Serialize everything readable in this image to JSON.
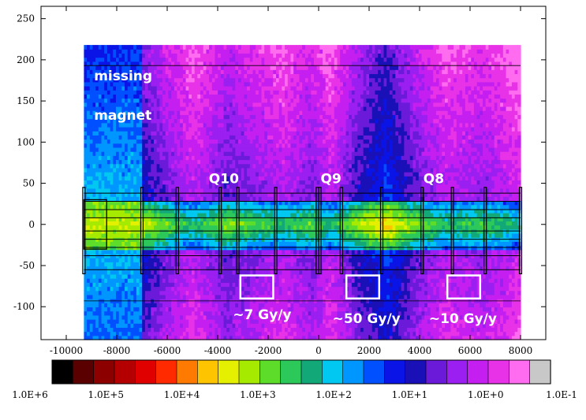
{
  "chart_data": {
    "type": "heatmap",
    "title": "",
    "xlabel": "",
    "ylabel": "",
    "xlim": [
      -11000,
      9000
    ],
    "ylim": [
      -140,
      265
    ],
    "x_ticks": [
      -10000,
      -8000,
      -6000,
      -4000,
      -2000,
      0,
      2000,
      4000,
      6000,
      8000
    ],
    "y_ticks": [
      -100,
      -50,
      0,
      50,
      100,
      150,
      200,
      250
    ],
    "x_tick_labels": [
      "-10000",
      "-8000",
      "-6000",
      "-4000",
      "-2000",
      "0",
      "2000",
      "4000",
      "6000",
      "8000"
    ],
    "y_tick_labels": [
      "-100",
      "-50",
      "0",
      "50",
      "100",
      "150",
      "200",
      "250"
    ],
    "grid": false,
    "data_extent": {
      "x": [
        -9300,
        8000
      ],
      "y": [
        -140,
        218
      ]
    },
    "colorbar": {
      "orientation": "horizontal",
      "position": "bottom",
      "colors": [
        "#000000",
        "#5a0000",
        "#8c0000",
        "#b40000",
        "#e00000",
        "#ff2a00",
        "#ff7a00",
        "#ffc400",
        "#e4f000",
        "#a6ea00",
        "#5edc2a",
        "#2cc85a",
        "#12a878",
        "#00c8f0",
        "#0096ff",
        "#0050ff",
        "#0a14e6",
        "#1a10b8",
        "#6a1ad8",
        "#9a1ff0",
        "#c41ff0",
        "#e832e8",
        "#ff6cf0",
        "#c8c8c8"
      ],
      "tick_labels": [
        "1.0E+6",
        "1.0E+5",
        "1.0E+4",
        "1.0E+3",
        "1.0E+2",
        "1.0E+1",
        "1.0E+0",
        "1.0E-1"
      ]
    },
    "annotations": [
      {
        "text": "missing",
        "x": -8900,
        "y": 175
      },
      {
        "text": "magnet",
        "x": -8900,
        "y": 127
      },
      {
        "text": "Q10",
        "x": -4350,
        "y": 50
      },
      {
        "text": "Q9",
        "x": 80,
        "y": 50
      },
      {
        "text": "Q8",
        "x": 4150,
        "y": 50
      },
      {
        "text": "~7 Gy/y",
        "x": -3400,
        "y": -115
      },
      {
        "text": "~50 Gy/y",
        "x": 550,
        "y": -120
      },
      {
        "text": "~10 Gy/y",
        "x": 4370,
        "y": -120
      }
    ],
    "boxes": [
      {
        "label": "~7 Gy/y",
        "x": [
          -3100,
          -1800
        ],
        "y": [
          -90,
          -62
        ]
      },
      {
        "label": "~50 Gy/y",
        "x": [
          1100,
          2400
        ],
        "y": [
          -90,
          -62
        ]
      },
      {
        "label": "~10 Gy/y",
        "x": [
          5100,
          6400
        ],
        "y": [
          -90,
          -62
        ]
      }
    ],
    "magnets": [
      {
        "name": "missing magnet",
        "x": [
          -9300,
          -7000
        ]
      },
      {
        "name": "Q10",
        "x": [
          -7000,
          -1500
        ]
      },
      {
        "name": "Q9",
        "x": [
          0,
          4100
        ]
      },
      {
        "name": "Q8",
        "x": [
          4100,
          8000
        ]
      }
    ],
    "dose_profile": [
      {
        "x": -9300,
        "level": 1.0
      },
      {
        "x": -8400,
        "level": 3.0
      },
      {
        "x": -7600,
        "level": 2.6
      },
      {
        "x": -7000,
        "level": 1.8
      },
      {
        "x": -5000,
        "level": 0.5
      },
      {
        "x": -3600,
        "level": 1.3
      },
      {
        "x": -1400,
        "level": 0.6
      },
      {
        "x": -300,
        "level": 1.1
      },
      {
        "x": 500,
        "level": 0.5
      },
      {
        "x": 1500,
        "level": 1.5
      },
      {
        "x": 2700,
        "level": 2.2
      },
      {
        "x": 3800,
        "level": 1.3
      },
      {
        "x": 5000,
        "level": 0.6
      },
      {
        "x": 6600,
        "level": 0.9
      },
      {
        "x": 8000,
        "level": 0.3
      }
    ]
  }
}
